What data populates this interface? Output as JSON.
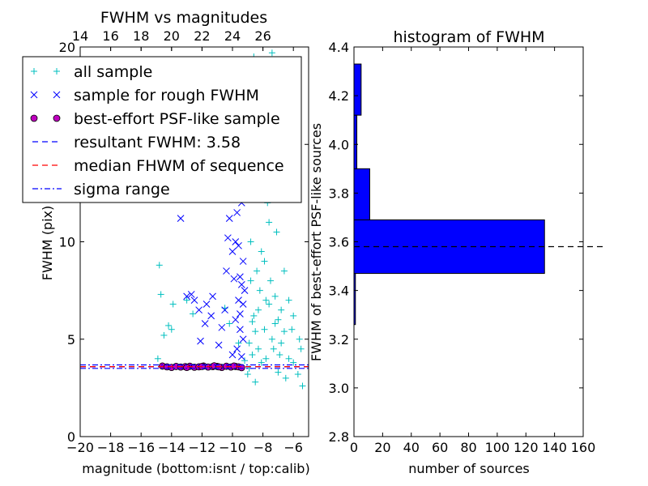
{
  "chart_data": [
    {
      "type": "scatter",
      "title": "FWHM vs magnitudes",
      "xlabel": "magnitude (bottom:isnt / top:calib)",
      "ylabel": "FWHM (pix)",
      "xlim": [
        -20,
        -5
      ],
      "ylim": [
        0,
        20
      ],
      "x_ticks": [
        -20,
        -18,
        -16,
        -14,
        -12,
        -10,
        -8,
        -6
      ],
      "x_tick_labels": [
        "−20",
        "−18",
        "−16",
        "−14",
        "−12",
        "−10",
        "−8",
        "−6"
      ],
      "y_ticks": [
        0,
        5,
        10,
        15,
        20
      ],
      "y_tick_labels": [
        "0",
        "5",
        "10",
        "15",
        "20"
      ],
      "top_ticks": [
        14,
        16,
        18,
        20,
        22,
        24,
        26
      ],
      "top_tick_labels": [
        "14",
        "16",
        "18",
        "20",
        "22",
        "24",
        "26"
      ],
      "top_axis_offset": 34,
      "legend": {
        "placement": "upper-left",
        "entries": [
          {
            "label": "all sample",
            "marker": "plus",
            "color": "#00BFBF"
          },
          {
            "label": "sample for rough FWHM",
            "marker": "x",
            "color": "#0000FF"
          },
          {
            "label": "best-effort PSF-like sample",
            "marker": "circle",
            "color": "#BF00BF"
          },
          {
            "label": "resultant FWHM: 3.58",
            "marker": "dashed",
            "color": "#0000FF"
          },
          {
            "label": "median FHWM of sequence",
            "marker": "dashed",
            "color": "#FF0000"
          },
          {
            "label": "sigma range",
            "marker": "dashdot",
            "color": "#0000FF"
          }
        ]
      },
      "series": [
        {
          "marker": "plus",
          "color": "#00BFBF",
          "points": [
            [
              -14.8,
              8.8
            ],
            [
              -14.7,
              7.3
            ],
            [
              -14.5,
              5.2
            ],
            [
              -14.2,
              5.7
            ],
            [
              -14.0,
              5.5
            ],
            [
              -14.9,
              4.0
            ],
            [
              -13.9,
              6.8
            ],
            [
              -13.0,
              7.0
            ],
            [
              -12.6,
              6.3
            ],
            [
              -10.5,
              6.6
            ],
            [
              -10.2,
              5.8
            ],
            [
              -9.6,
              4.8
            ],
            [
              -9.8,
              14.5
            ],
            [
              -8.6,
              19.5
            ],
            [
              -7.4,
              19.7
            ],
            [
              -8.0,
              19.0
            ],
            [
              -7.8,
              17.5
            ],
            [
              -8.3,
              16.0
            ],
            [
              -7.5,
              15.2
            ],
            [
              -8.0,
              12.5
            ],
            [
              -7.6,
              11.0
            ],
            [
              -8.8,
              10.0
            ],
            [
              -8.4,
              8.5
            ],
            [
              -8.2,
              7.5
            ],
            [
              -7.8,
              7.0
            ],
            [
              -7.6,
              6.8
            ],
            [
              -7.9,
              9.0
            ],
            [
              -8.6,
              6.2
            ],
            [
              -8.5,
              5.4
            ],
            [
              -8.9,
              4.8
            ],
            [
              -8.7,
              4.2
            ],
            [
              -8.3,
              4.5
            ],
            [
              -7.4,
              5.0
            ],
            [
              -7.2,
              5.8
            ],
            [
              -7.0,
              6.0
            ],
            [
              -6.8,
              4.8
            ],
            [
              -6.6,
              5.4
            ],
            [
              -6.3,
              4.0
            ],
            [
              -6.0,
              3.8
            ],
            [
              -5.7,
              3.2
            ],
            [
              -5.5,
              4.5
            ],
            [
              -5.4,
              2.6
            ],
            [
              -6.5,
              3.0
            ],
            [
              -7.0,
              3.3
            ],
            [
              -8.1,
              3.8
            ],
            [
              -8.9,
              3.5
            ],
            [
              -9.0,
              3.2
            ],
            [
              -8.5,
              2.8
            ],
            [
              -7.8,
              4.0
            ],
            [
              -7.3,
              4.5
            ],
            [
              -6.9,
              4.2
            ],
            [
              -9.2,
              3.9
            ],
            [
              -8.8,
              8.0
            ],
            [
              -8.1,
              9.5
            ],
            [
              -7.7,
              12.0
            ],
            [
              -8.2,
              13.5
            ],
            [
              -7.3,
              16.5
            ],
            [
              -6.9,
              14.0
            ],
            [
              -7.1,
              10.5
            ],
            [
              -6.6,
              8.5
            ],
            [
              -6.3,
              7.0
            ],
            [
              -6.0,
              6.2
            ],
            [
              -5.6,
              5.0
            ],
            [
              -7.5,
              8.0
            ],
            [
              -8.3,
              6.5
            ],
            [
              -7.9,
              5.5
            ],
            [
              -8.7,
              5.9
            ],
            [
              -7.2,
              7.2
            ],
            [
              -6.8,
              6.5
            ],
            [
              -6.1,
              5.5
            ]
          ]
        },
        {
          "marker": "x",
          "color": "#0000FF",
          "points": [
            [
              -13.4,
              11.2
            ],
            [
              -13.0,
              7.2
            ],
            [
              -12.7,
              7.3
            ],
            [
              -12.5,
              7.0
            ],
            [
              -12.2,
              6.5
            ],
            [
              -11.8,
              5.8
            ],
            [
              -12.1,
              4.9
            ],
            [
              -11.7,
              6.8
            ],
            [
              -11.4,
              6.2
            ],
            [
              -11.3,
              7.2
            ],
            [
              -11.0,
              15.0
            ],
            [
              -10.6,
              14.8
            ],
            [
              -10.3,
              12.8
            ],
            [
              -10.1,
              12.5
            ],
            [
              -9.9,
              12.3
            ],
            [
              -9.7,
              11.5
            ],
            [
              -9.8,
              10.0
            ],
            [
              -10.0,
              9.5
            ],
            [
              -10.4,
              8.5
            ],
            [
              -10.5,
              6.5
            ],
            [
              -10.7,
              5.6
            ],
            [
              -10.9,
              4.7
            ],
            [
              -10.3,
              10.2
            ],
            [
              -9.6,
              9.8
            ],
            [
              -9.5,
              8.2
            ],
            [
              -9.4,
              7.8
            ],
            [
              -9.6,
              7.0
            ],
            [
              -9.8,
              6.0
            ],
            [
              -9.5,
              5.5
            ],
            [
              -9.3,
              5.0
            ],
            [
              -9.7,
              4.5
            ],
            [
              -10.0,
              4.2
            ],
            [
              -9.4,
              4.1
            ],
            [
              -9.3,
              9.0
            ],
            [
              -9.2,
              7.5
            ],
            [
              -9.5,
              6.3
            ],
            [
              -9.6,
              15.0
            ],
            [
              -9.8,
              13.6
            ],
            [
              -9.4,
              12.0
            ],
            [
              -10.2,
              11.2
            ],
            [
              -9.3,
              6.8
            ],
            [
              -9.9,
              8.1
            ]
          ]
        },
        {
          "marker": "circle",
          "color": "#BF00BF",
          "points": [
            [
              -14.6,
              3.62
            ],
            [
              -14.3,
              3.58
            ],
            [
              -14.0,
              3.55
            ],
            [
              -13.7,
              3.6
            ],
            [
              -13.4,
              3.57
            ],
            [
              -13.1,
              3.59
            ],
            [
              -12.8,
              3.61
            ],
            [
              -12.5,
              3.56
            ],
            [
              -12.2,
              3.58
            ],
            [
              -11.9,
              3.62
            ],
            [
              -11.6,
              3.57
            ],
            [
              -11.3,
              3.59
            ],
            [
              -11.0,
              3.6
            ],
            [
              -10.7,
              3.55
            ],
            [
              -10.4,
              3.61
            ],
            [
              -10.1,
              3.57
            ],
            [
              -9.8,
              3.6
            ],
            [
              -9.6,
              3.58
            ],
            [
              -9.4,
              3.54
            ],
            [
              -12.0,
              3.6
            ],
            [
              -13.0,
              3.55
            ],
            [
              -11.2,
              3.63
            ],
            [
              -10.9,
              3.58
            ],
            [
              -9.9,
              3.62
            ]
          ]
        }
      ],
      "hlines": [
        {
          "y": 3.58,
          "style": "dashed",
          "color": "#0000FF"
        },
        {
          "y": 3.59,
          "style": "dashed",
          "color": "#FF0000"
        },
        {
          "y": 3.5,
          "style": "dashdot",
          "color": "#0000FF"
        },
        {
          "y": 3.68,
          "style": "dashdot",
          "color": "#0000FF"
        }
      ]
    },
    {
      "type": "bar",
      "orientation": "horizontal",
      "title": "histogram of FWHM",
      "xlabel": "number of sources",
      "ylabel": "FWHM of best-effort PSF-like sources",
      "xlim": [
        0,
        160
      ],
      "ylim": [
        2.8,
        4.4
      ],
      "x_ticks": [
        0,
        20,
        40,
        60,
        80,
        100,
        120,
        140,
        160
      ],
      "x_tick_labels": [
        "0",
        "20",
        "40",
        "60",
        "80",
        "100",
        "120",
        "140",
        "160"
      ],
      "y_ticks": [
        2.8,
        3.0,
        3.2,
        3.4,
        3.6,
        3.8,
        4.0,
        4.2,
        4.4
      ],
      "y_tick_labels": [
        "2.8",
        "3.0",
        "3.2",
        "3.4",
        "3.6",
        "3.8",
        "4.0",
        "4.2",
        "4.4"
      ],
      "color": "#0000FF",
      "bins": [
        {
          "low": 3.26,
          "high": 3.47,
          "count": 1
        },
        {
          "low": 3.47,
          "high": 3.69,
          "count": 133
        },
        {
          "low": 3.69,
          "high": 3.9,
          "count": 11
        },
        {
          "low": 3.9,
          "high": 4.12,
          "count": 2
        },
        {
          "low": 4.12,
          "high": 4.33,
          "count": 5
        }
      ],
      "hline": {
        "y": 3.58,
        "style": "dashed",
        "color": "#000000",
        "xmax": 175
      }
    }
  ]
}
